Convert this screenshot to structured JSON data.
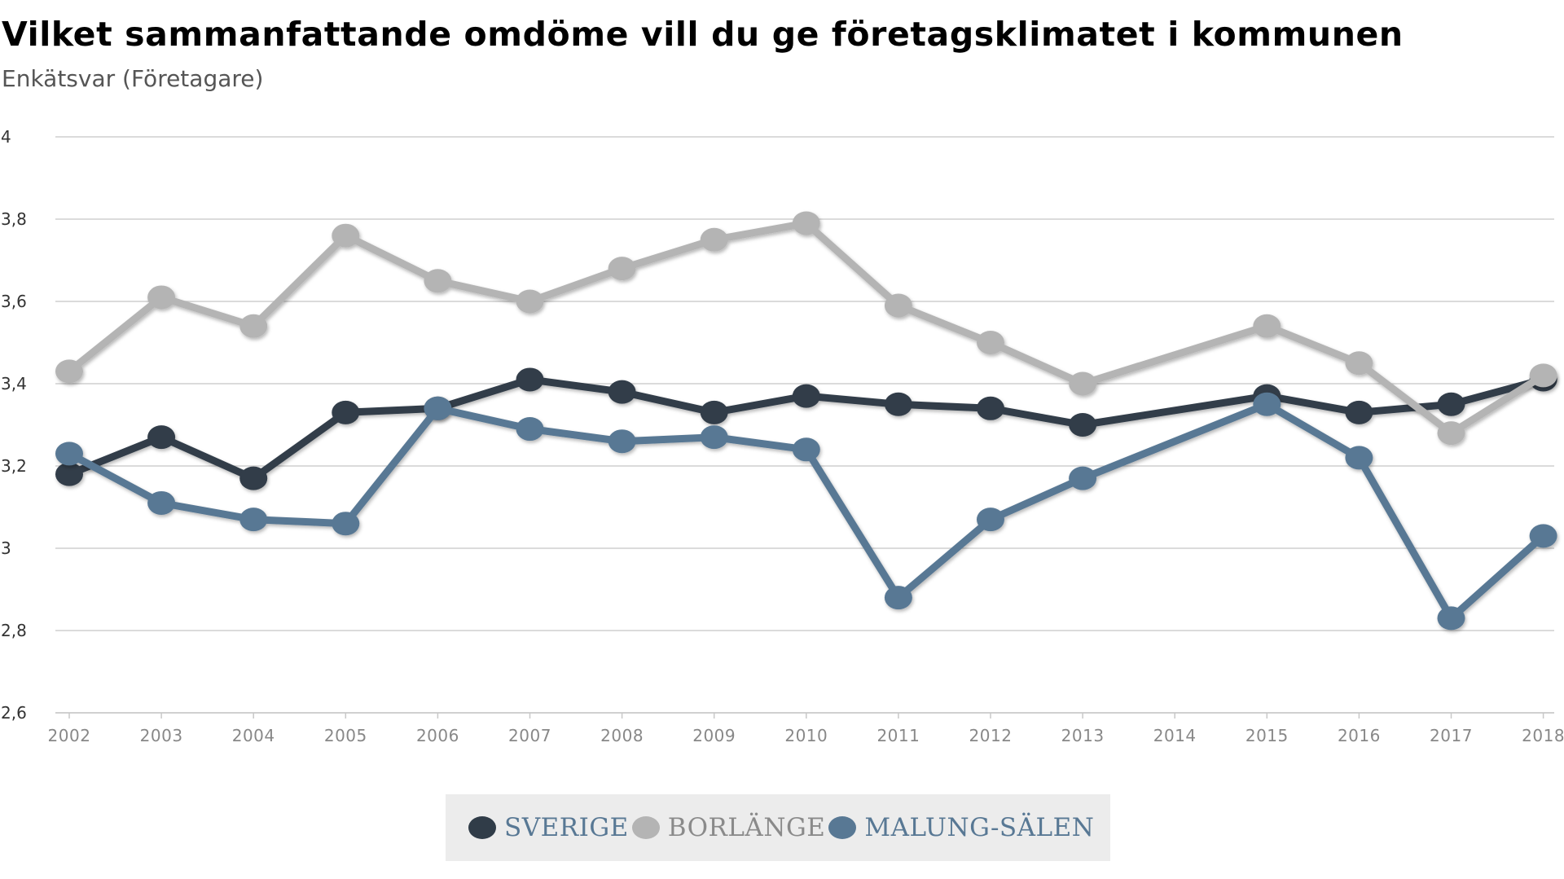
{
  "header": {
    "title": "Vilket sammanfattande omdöme vill du ge företagsklimatet i kommunen",
    "subtitle": "Enkätsvar (Företagare)"
  },
  "chart_data": {
    "type": "line",
    "title": "Vilket sammanfattande omdöme vill du ge företagsklimatet i kommunen",
    "subtitle": "Enkätsvar (Företagare)",
    "xlabel": "",
    "ylabel": "",
    "x": [
      2002,
      2003,
      2004,
      2005,
      2006,
      2007,
      2008,
      2009,
      2010,
      2011,
      2012,
      2013,
      2014,
      2015,
      2016,
      2017,
      2018
    ],
    "x_tick_labels": [
      "2002",
      "2003",
      "2004",
      "2005",
      "2006",
      "2007",
      "2008",
      "2009",
      "2010",
      "2011",
      "2012",
      "2013",
      "2014",
      "2015",
      "2016",
      "2017",
      "2018"
    ],
    "ylim": [
      2.6,
      4
    ],
    "y_ticks": [
      2.6,
      2.8,
      3,
      3.2,
      3.4,
      3.6,
      3.8,
      4
    ],
    "y_tick_labels": [
      "2,6",
      "2,8",
      "3",
      "3,2",
      "3,4",
      "3,6",
      "3,8",
      "4"
    ],
    "grid": true,
    "legend_position": "bottom-center",
    "series": [
      {
        "name": "SVERIGE",
        "color": "#303c48",
        "x": [
          2002,
          2003,
          2004,
          2005,
          2006,
          2007,
          2008,
          2009,
          2010,
          2011,
          2012,
          2013,
          2015,
          2016,
          2017,
          2018
        ],
        "values": [
          3.18,
          3.27,
          3.17,
          3.33,
          3.34,
          3.41,
          3.38,
          3.33,
          3.37,
          3.35,
          3.34,
          3.3,
          3.37,
          3.33,
          3.35,
          3.41
        ]
      },
      {
        "name": "BORLÄNGE",
        "color": "#b4b4b4",
        "x": [
          2002,
          2003,
          2004,
          2005,
          2006,
          2007,
          2008,
          2009,
          2010,
          2011,
          2012,
          2013,
          2015,
          2016,
          2017,
          2018
        ],
        "values": [
          3.43,
          3.61,
          3.54,
          3.76,
          3.65,
          3.6,
          3.68,
          3.75,
          3.79,
          3.59,
          3.5,
          3.4,
          3.54,
          3.45,
          3.28,
          3.42
        ]
      },
      {
        "name": "MALUNG-SÄLEN",
        "color": "#587894",
        "x": [
          2002,
          2003,
          2004,
          2005,
          2006,
          2007,
          2008,
          2009,
          2010,
          2011,
          2012,
          2013,
          2015,
          2016,
          2017,
          2018
        ],
        "values": [
          3.23,
          3.11,
          3.07,
          3.06,
          3.34,
          3.29,
          3.26,
          3.27,
          3.24,
          2.88,
          3.07,
          3.17,
          3.35,
          3.22,
          2.83,
          3.03
        ]
      }
    ]
  }
}
